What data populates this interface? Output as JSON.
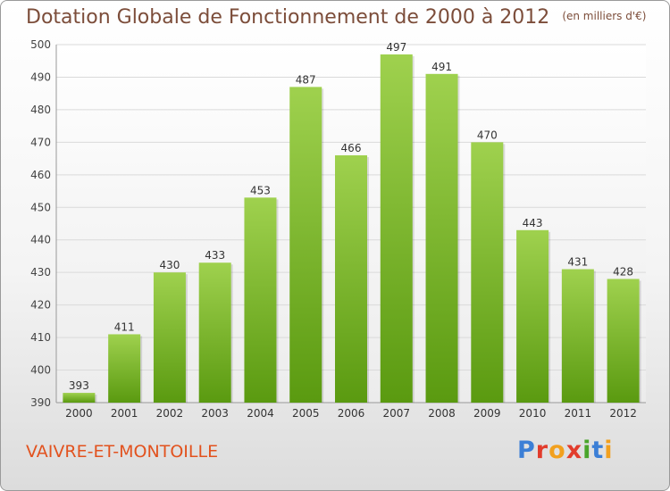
{
  "header": {
    "title": "Dotation Globale de Fonctionnement de 2000 à 2012",
    "unit": "(en milliers d'€)"
  },
  "footer": {
    "commune": "VAIVRE-ET-MONTOILLE",
    "logo": "Proxiti"
  },
  "colors": {
    "bar_light": "#9fd14e",
    "bar_dark": "#5a9a10",
    "title": "#7c4d3a",
    "commune": "#e2521e"
  },
  "chart_data": {
    "type": "bar",
    "categories": [
      "2000",
      "2001",
      "2002",
      "2003",
      "2004",
      "2005",
      "2006",
      "2007",
      "2008",
      "2009",
      "2010",
      "2011",
      "2012"
    ],
    "values": [
      393,
      411,
      430,
      433,
      453,
      487,
      466,
      497,
      491,
      470,
      443,
      431,
      428
    ],
    "ylim": [
      390,
      500
    ],
    "yticks": [
      390,
      400,
      410,
      420,
      430,
      440,
      450,
      460,
      470,
      480,
      490,
      500
    ],
    "grid": true,
    "data_labels": true
  }
}
